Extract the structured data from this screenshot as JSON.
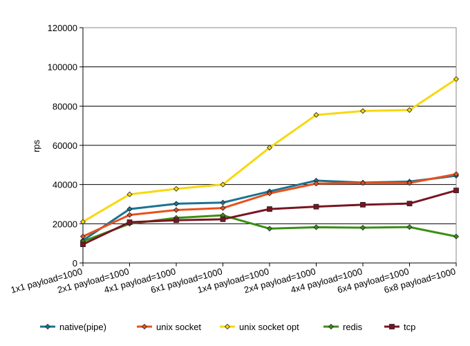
{
  "chart_data": {
    "type": "line",
    "title": "",
    "xlabel": "",
    "ylabel": "rps",
    "ylim": [
      0,
      120000
    ],
    "yticks": [
      "0",
      "20000",
      "40000",
      "60000",
      "80000",
      "100000",
      "120000"
    ],
    "grid": "horizontal",
    "legend_position": "bottom",
    "categories": [
      "1x1 payload=1000",
      "2x1 payload=1000",
      "4x1 payload=1000",
      "6x1 payload=1000",
      "1x4 payload=1000",
      "2x4 payload=1000",
      "4x4 payload=1000",
      "6x4 payload=1000",
      "6x8 payload=1000"
    ],
    "series": [
      {
        "name": "native(pipe)",
        "color": "#1a7391",
        "marker": "diamond",
        "values": [
          11500,
          27500,
          30200,
          30800,
          36500,
          42000,
          41000,
          41500,
          44500
        ]
      },
      {
        "name": "unix socket",
        "color": "#e8501c",
        "marker": "diamond",
        "values": [
          13500,
          24500,
          27000,
          28000,
          35500,
          40500,
          40800,
          40800,
          45300
        ]
      },
      {
        "name": "unix socket opt",
        "color": "#f7d80c",
        "marker": "diamond",
        "values": [
          21000,
          35000,
          37800,
          40000,
          58800,
          75500,
          77500,
          78000,
          93800
        ]
      },
      {
        "name": "redis",
        "color": "#3a8f14",
        "marker": "diamond",
        "values": [
          11000,
          20000,
          23000,
          24300,
          17500,
          18200,
          18000,
          18300,
          13500
        ]
      },
      {
        "name": "tcp",
        "color": "#7a1422",
        "marker": "square",
        "values": [
          9500,
          20800,
          21800,
          22300,
          27500,
          28700,
          29700,
          30300,
          37000
        ]
      }
    ]
  }
}
